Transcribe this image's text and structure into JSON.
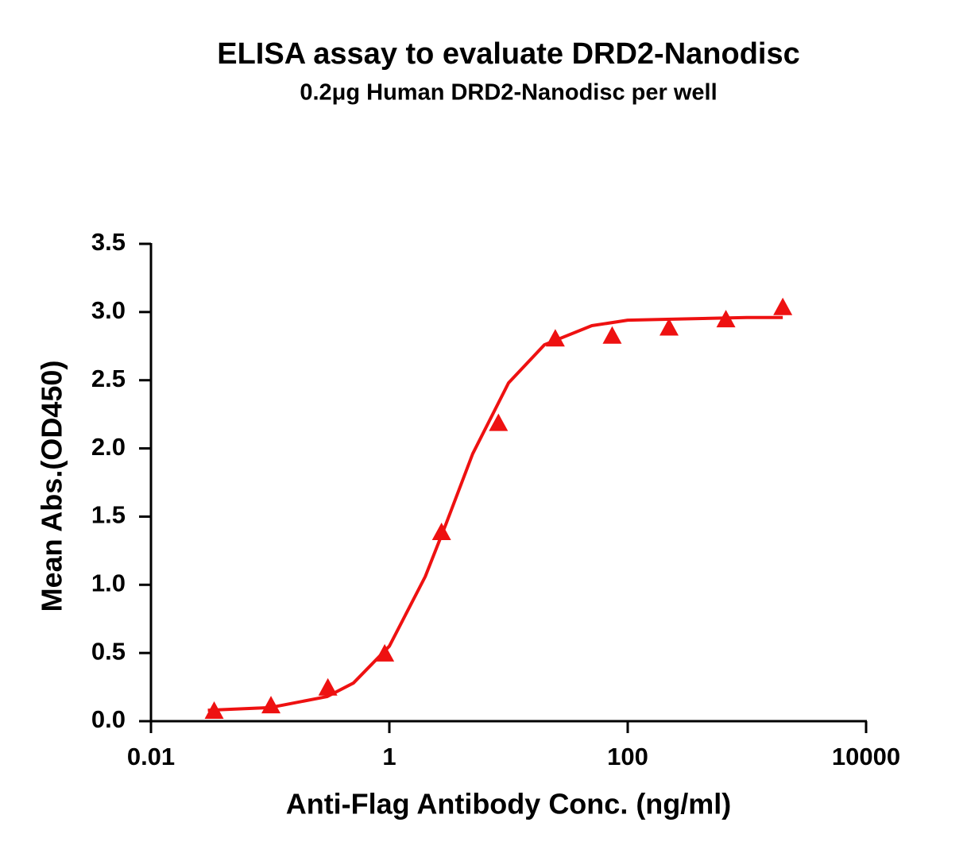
{
  "chart_data": {
    "type": "scatter",
    "title": "ELISA assay to evaluate DRD2-Nanodisc",
    "subtitle": "0.2μg Human DRD2-Nanodisc per well",
    "x_label": "Anti-Flag Antibody Conc. (ng/ml)",
    "y_label": "Mean Abs.(OD450)",
    "x_scale": "log",
    "xlim": [
      0.01,
      10000
    ],
    "xticks": [
      0.01,
      1,
      100,
      10000
    ],
    "ylim": [
      0,
      3.5
    ],
    "yticks": [
      {
        "value": 0,
        "label": "0.0"
      },
      0.5,
      {
        "value": 1,
        "label": "1.0"
      },
      1.5,
      {
        "value": 2,
        "label": "2.0"
      },
      2.5,
      {
        "value": 3,
        "label": "3.0"
      },
      3.5
    ],
    "series": [
      {
        "color": "#ee1111",
        "marker": "triangle",
        "x": [
          0.0339,
          0.1016,
          0.305,
          0.914,
          2.74,
          8.23,
          24.69,
          74.07,
          222.2,
          666.7,
          2000
        ],
        "values": [
          0.07,
          0.11,
          0.24,
          0.49,
          1.38,
          2.18,
          2.8,
          2.82,
          2.88,
          2.94,
          3.03
        ]
      },
      {
        "color": "#ee1111",
        "line": true,
        "x": [
          0.03,
          0.1,
          0.3,
          0.5,
          1,
          2,
          3,
          5,
          10,
          20,
          50,
          100,
          300,
          1000,
          2000
        ],
        "values": [
          0.08,
          0.1,
          0.18,
          0.28,
          0.55,
          1.06,
          1.45,
          1.96,
          2.48,
          2.76,
          2.9,
          2.94,
          2.95,
          2.96,
          2.96
        ]
      }
    ]
  }
}
